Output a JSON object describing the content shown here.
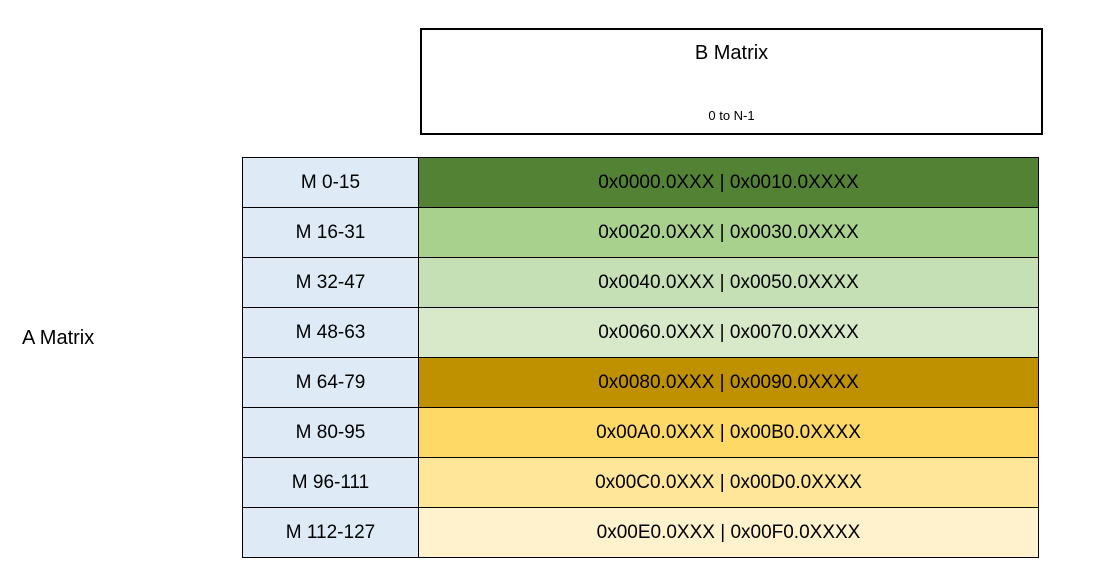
{
  "page": {
    "background_color": "#ffffff"
  },
  "a_matrix": {
    "label": "A Matrix"
  },
  "b_matrix": {
    "title": "B Matrix",
    "subtitle": "0 to N-1",
    "border_color": "#000000",
    "background_color": "#ffffff"
  },
  "table": {
    "label_column_color": "#DEEBF7",
    "border_color": "#000000",
    "rows": [
      {
        "label": "M 0-15",
        "value": "0x0000.0XXX | 0x0010.0XXXX",
        "color": "#548235"
      },
      {
        "label": "M 16-31",
        "value": "0x0020.0XXX | 0x0030.0XXXX",
        "color": "#A9D18E"
      },
      {
        "label": "M 32-47",
        "value": "0x0040.0XXX | 0x0050.0XXXX",
        "color": "#C5E0B4"
      },
      {
        "label": "M 48-63",
        "value": "0x0060.0XXX | 0x0070.0XXXX",
        "color": "#D7E9C9"
      },
      {
        "label": "M 64-79",
        "value": "0x0080.0XXX | 0x0090.0XXXX",
        "color": "#BF9000"
      },
      {
        "label": "M 80-95",
        "value": "0x00A0.0XXX | 0x00B0.0XXXX",
        "color": "#FFD966"
      },
      {
        "label": "M 96-111",
        "value": "0x00C0.0XXX | 0x00D0.0XXXX",
        "color": "#FFE699"
      },
      {
        "label": "M 112-127",
        "value": "0x00E0.0XXX | 0x00F0.0XXXX",
        "color": "#FFF2CC"
      }
    ]
  }
}
